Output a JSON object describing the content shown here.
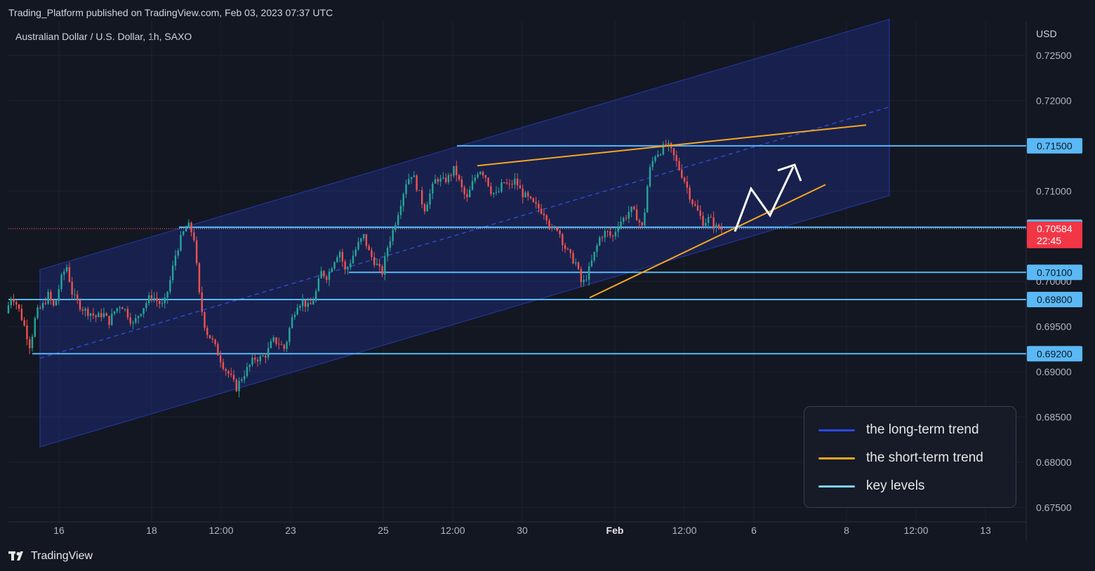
{
  "header": {
    "published": "Trading_Platform published on TradingView.com, Feb 03, 2023 07:37 UTC"
  },
  "footer": {
    "brand": "TradingView"
  },
  "chart_data": {
    "type": "candlestick",
    "title": "Australian Dollar / U.S. Dollar, 1h, SAXO",
    "currency": "USD",
    "y_ticks": [
      "0.72500",
      "0.72000",
      "0.71000",
      "0.70000",
      "0.69500",
      "0.69000",
      "0.68500",
      "0.68000",
      "0.67500"
    ],
    "ylim": [
      0.6734,
      0.7288
    ],
    "x_ticks": [
      {
        "label": "16",
        "bold": false
      },
      {
        "label": "18",
        "bold": false
      },
      {
        "label": "12:00",
        "bold": false
      },
      {
        "label": "23",
        "bold": false
      },
      {
        "label": "25",
        "bold": false
      },
      {
        "label": "12:00",
        "bold": false
      },
      {
        "label": "30",
        "bold": false
      },
      {
        "label": "Feb",
        "bold": true
      },
      {
        "label": "12:00",
        "bold": false
      },
      {
        "label": "6",
        "bold": false
      },
      {
        "label": "8",
        "bold": false
      },
      {
        "label": "12:00",
        "bold": false
      },
      {
        "label": "13",
        "bold": false
      }
    ],
    "key_levels": [
      {
        "label": "0.71500",
        "value": 0.715
      },
      {
        "label": "0.70600",
        "value": 0.706
      },
      {
        "label": "0.70100",
        "value": 0.701
      },
      {
        "label": "0.69800",
        "value": 0.698
      },
      {
        "label": "0.69200",
        "value": 0.692
      }
    ],
    "current_price": {
      "label": "0.70584",
      "countdown": "22:45",
      "value": 0.70584
    },
    "price_path": [
      0.6965,
      0.6985,
      0.6972,
      0.6952,
      0.6928,
      0.6965,
      0.6972,
      0.6985,
      0.697,
      0.7,
      0.7018,
      0.6985,
      0.6975,
      0.6968,
      0.6965,
      0.696,
      0.6965,
      0.6955,
      0.6968,
      0.6975,
      0.6965,
      0.6952,
      0.6965,
      0.6975,
      0.6985,
      0.6978,
      0.6972,
      0.6998,
      0.703,
      0.705,
      0.7063,
      0.705,
      0.6978,
      0.6945,
      0.6935,
      0.692,
      0.6905,
      0.6895,
      0.6882,
      0.6895,
      0.6905,
      0.6915,
      0.6915,
      0.692,
      0.6935,
      0.6932,
      0.6925,
      0.6955,
      0.6975,
      0.6978,
      0.697,
      0.6985,
      0.701,
      0.7005,
      0.7022,
      0.7035,
      0.701,
      0.7025,
      0.704,
      0.705,
      0.703,
      0.702,
      0.7008,
      0.704,
      0.706,
      0.7085,
      0.711,
      0.712,
      0.71,
      0.708,
      0.7098,
      0.7115,
      0.711,
      0.7115,
      0.7125,
      0.7105,
      0.709,
      0.711,
      0.7125,
      0.7118,
      0.71,
      0.7095,
      0.711,
      0.7105,
      0.7112,
      0.7098,
      0.7092,
      0.7085,
      0.708,
      0.7075,
      0.7055,
      0.706,
      0.704,
      0.7028,
      0.702,
      0.6995,
      0.701,
      0.703,
      0.705,
      0.7055,
      0.7048,
      0.7065,
      0.707,
      0.708,
      0.7072,
      0.7058,
      0.712,
      0.714,
      0.7145,
      0.7152,
      0.714,
      0.7125,
      0.711,
      0.709,
      0.7078,
      0.7065,
      0.707,
      0.706,
      0.7058
    ],
    "long_term_trend": {
      "upper_start": 0.7013,
      "upper_end": 0.729,
      "lower_start": 0.6817,
      "lower_end": 0.7095,
      "mid_start": 0.6915,
      "mid_end": 0.7193
    },
    "short_term_trend": {
      "upper_start": 0.7128,
      "upper_end": 0.7173,
      "lower_start": 0.6982,
      "lower_end": 0.7107
    },
    "projection_arrow": "up",
    "legend": [
      {
        "label": "the long-term trend",
        "color": "#2a46e8"
      },
      {
        "label": "the short-term trend",
        "color": "#f5a623"
      },
      {
        "label": "key levels",
        "color": "#7fd3ff"
      }
    ],
    "colors": {
      "up": "#26a69a",
      "down": "#ef5350",
      "channel": "#2438a8",
      "level": "#5ab8f5",
      "current": "#f23645"
    }
  }
}
